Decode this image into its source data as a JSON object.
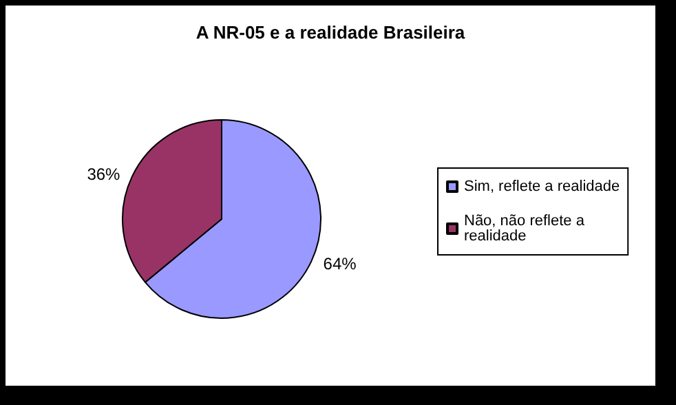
{
  "chart_data": {
    "type": "pie",
    "title": "A NR-05 e a realidade Brasileira",
    "categories": [
      "Sim, reflete a realidade",
      "Não, não reflete a realidade"
    ],
    "values": [
      64,
      36
    ],
    "colors": [
      "#9999ff",
      "#993366"
    ],
    "value_labels": [
      "64%",
      "36%"
    ],
    "legend": "right"
  }
}
